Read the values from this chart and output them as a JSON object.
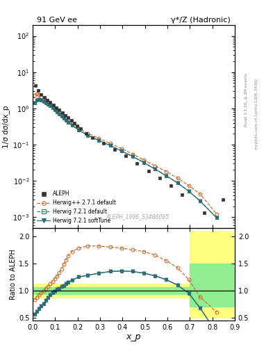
{
  "title_left": "91 GeV ee",
  "title_right": "γ*/Z (Hadronic)",
  "ylabel_main": "1/σ dσ/dx_p",
  "ylabel_ratio": "Ratio to ALEPH",
  "xlabel": "x_p",
  "watermark": "ALEPH_1996_S3486095",
  "right_label_top": "Rivet 3.1.10, ≥ 3M events",
  "right_label_bot": "mcplots.cern.ch [arXiv:1306.3436]",
  "aleph_x": [
    0.012,
    0.025,
    0.038,
    0.052,
    0.065,
    0.078,
    0.092,
    0.105,
    0.118,
    0.132,
    0.145,
    0.158,
    0.172,
    0.185,
    0.198,
    0.212,
    0.238,
    0.265,
    0.315,
    0.365,
    0.415,
    0.465,
    0.515,
    0.565,
    0.615,
    0.665,
    0.765,
    0.848
  ],
  "aleph_y": [
    4.2,
    3.1,
    2.45,
    2.0,
    1.72,
    1.47,
    1.25,
    1.06,
    0.9,
    0.76,
    0.65,
    0.55,
    0.46,
    0.39,
    0.33,
    0.275,
    0.202,
    0.157,
    0.107,
    0.074,
    0.049,
    0.031,
    0.019,
    0.012,
    0.0073,
    0.0041,
    0.0013,
    0.003
  ],
  "hppdef_x": [
    0.008,
    0.018,
    0.028,
    0.038,
    0.048,
    0.058,
    0.068,
    0.078,
    0.088,
    0.098,
    0.108,
    0.118,
    0.128,
    0.138,
    0.148,
    0.158,
    0.175,
    0.205,
    0.245,
    0.295,
    0.345,
    0.395,
    0.445,
    0.495,
    0.545,
    0.595,
    0.645,
    0.695,
    0.745,
    0.82
  ],
  "hppdef_y": [
    2.3,
    2.5,
    2.35,
    2.1,
    1.88,
    1.68,
    1.5,
    1.33,
    1.18,
    1.04,
    0.92,
    0.81,
    0.71,
    0.62,
    0.54,
    0.47,
    0.39,
    0.285,
    0.205,
    0.148,
    0.108,
    0.078,
    0.055,
    0.038,
    0.026,
    0.018,
    0.012,
    0.0074,
    0.0044,
    0.0012
  ],
  "h721def_x": [
    0.008,
    0.018,
    0.028,
    0.038,
    0.048,
    0.058,
    0.068,
    0.078,
    0.088,
    0.098,
    0.108,
    0.118,
    0.128,
    0.138,
    0.148,
    0.158,
    0.175,
    0.205,
    0.245,
    0.295,
    0.345,
    0.395,
    0.445,
    0.495,
    0.545,
    0.595,
    0.645,
    0.695,
    0.745,
    0.82
  ],
  "h721def_y": [
    1.4,
    1.7,
    1.75,
    1.68,
    1.57,
    1.43,
    1.3,
    1.17,
    1.04,
    0.92,
    0.81,
    0.71,
    0.62,
    0.54,
    0.47,
    0.41,
    0.34,
    0.252,
    0.18,
    0.13,
    0.094,
    0.067,
    0.047,
    0.032,
    0.021,
    0.0138,
    0.0088,
    0.0052,
    0.0028,
    0.00095
  ],
  "h721soft_x": [
    0.008,
    0.018,
    0.028,
    0.038,
    0.048,
    0.058,
    0.068,
    0.078,
    0.088,
    0.098,
    0.108,
    0.118,
    0.128,
    0.138,
    0.148,
    0.158,
    0.175,
    0.205,
    0.245,
    0.295,
    0.345,
    0.395,
    0.445,
    0.495,
    0.545,
    0.595,
    0.645,
    0.695,
    0.745,
    0.82
  ],
  "h721soft_y": [
    1.4,
    1.7,
    1.75,
    1.68,
    1.57,
    1.43,
    1.3,
    1.17,
    1.04,
    0.92,
    0.81,
    0.71,
    0.62,
    0.54,
    0.47,
    0.41,
    0.34,
    0.252,
    0.18,
    0.13,
    0.094,
    0.067,
    0.047,
    0.032,
    0.021,
    0.0138,
    0.0088,
    0.0052,
    0.0028,
    0.00095
  ],
  "color_aleph": "#333333",
  "color_hppdef": "#c87137",
  "color_h721def": "#2e7d4f",
  "color_h721soft": "#2e6a7d",
  "ratio_x": [
    0.008,
    0.018,
    0.028,
    0.038,
    0.048,
    0.058,
    0.068,
    0.078,
    0.088,
    0.098,
    0.108,
    0.118,
    0.128,
    0.138,
    0.148,
    0.158,
    0.175,
    0.205,
    0.245,
    0.295,
    0.345,
    0.395,
    0.445,
    0.495,
    0.545,
    0.595,
    0.645,
    0.695,
    0.745,
    0.82
  ],
  "ratio_hppdef": [
    0.83,
    0.87,
    0.92,
    0.96,
    1.0,
    1.04,
    1.08,
    1.12,
    1.17,
    1.22,
    1.27,
    1.33,
    1.4,
    1.48,
    1.56,
    1.64,
    1.72,
    1.78,
    1.82,
    1.82,
    1.8,
    1.78,
    1.75,
    1.72,
    1.65,
    1.55,
    1.42,
    1.2,
    0.88,
    0.6
  ],
  "ratio_h721def": [
    0.56,
    0.61,
    0.66,
    0.71,
    0.76,
    0.82,
    0.87,
    0.92,
    0.96,
    0.99,
    1.02,
    1.04,
    1.07,
    1.09,
    1.12,
    1.15,
    1.19,
    1.25,
    1.28,
    1.32,
    1.35,
    1.36,
    1.35,
    1.32,
    1.27,
    1.2,
    1.1,
    0.95,
    0.68,
    0.22
  ],
  "ratio_h721soft": [
    0.56,
    0.61,
    0.66,
    0.71,
    0.76,
    0.82,
    0.87,
    0.92,
    0.96,
    0.99,
    1.02,
    1.04,
    1.07,
    1.09,
    1.12,
    1.15,
    1.19,
    1.25,
    1.28,
    1.32,
    1.35,
    1.36,
    1.35,
    1.32,
    1.27,
    1.2,
    1.1,
    0.95,
    0.68,
    0.22
  ],
  "band_x_edges": [
    0.0,
    0.1,
    0.2,
    0.3,
    0.4,
    0.5,
    0.6,
    0.65,
    0.7,
    0.9
  ],
  "band_yellow_lo": [
    0.87,
    0.87,
    0.87,
    0.87,
    0.87,
    0.87,
    0.87,
    0.87,
    0.5,
    0.5
  ],
  "band_yellow_hi": [
    1.13,
    1.13,
    1.13,
    1.13,
    1.13,
    1.13,
    1.13,
    1.13,
    2.1,
    2.1
  ],
  "band_green_lo": [
    0.94,
    0.94,
    0.94,
    0.94,
    0.94,
    0.94,
    0.94,
    0.94,
    0.7,
    0.7
  ],
  "band_green_hi": [
    1.06,
    1.06,
    1.06,
    1.06,
    1.06,
    1.06,
    1.06,
    1.06,
    1.5,
    1.5
  ],
  "xlim": [
    0.0,
    0.9
  ],
  "ylim_main": [
    0.0005,
    200.0
  ],
  "ylim_ratio": [
    0.45,
    2.15
  ]
}
